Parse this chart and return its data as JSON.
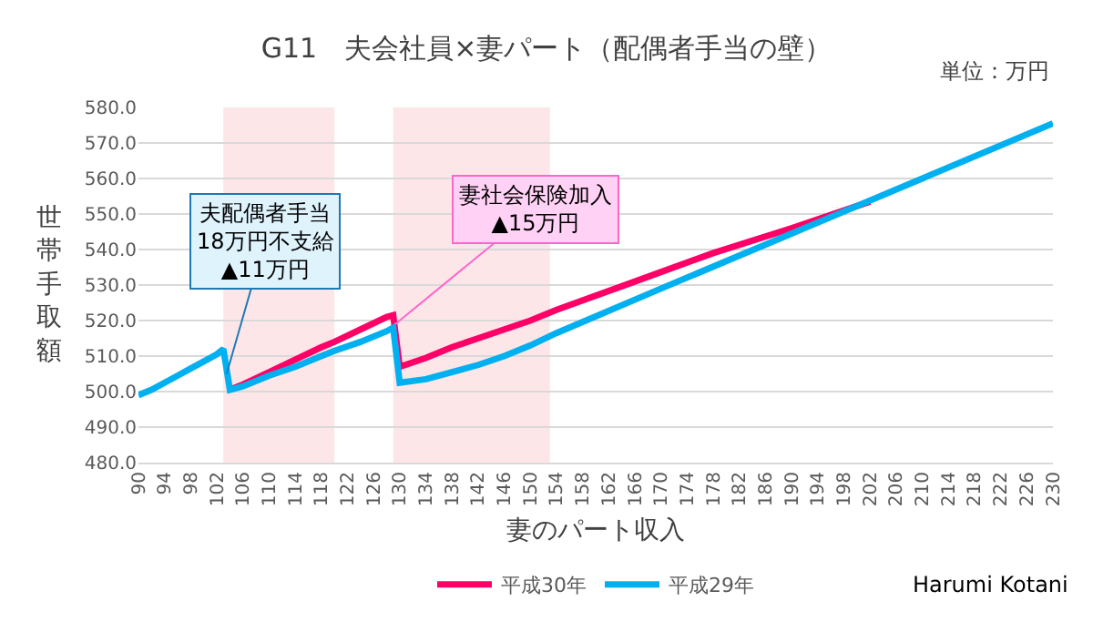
{
  "chart_data": {
    "type": "line",
    "title": "G11　夫会社員×妻パート（配偶者手当の壁）",
    "xlabel": "妻のパート収入",
    "ylabel": "世帯手取額",
    "xlim": [
      90,
      230
    ],
    "xticks": [
      90,
      94,
      98,
      102,
      106,
      110,
      114,
      118,
      122,
      126,
      130,
      134,
      138,
      142,
      146,
      150,
      154,
      158,
      162,
      166,
      170,
      174,
      178,
      182,
      186,
      190,
      194,
      198,
      202,
      206,
      210,
      214,
      218,
      222,
      226,
      230
    ],
    "ylim": [
      480,
      580
    ],
    "yticks": [
      {
        "value": 480,
        "label": "480.0"
      },
      {
        "value": 490,
        "label": "490.0"
      },
      {
        "value": 500,
        "label": "500.0"
      },
      {
        "value": 510,
        "label": "510.0"
      },
      {
        "value": 520,
        "label": "520.0"
      },
      {
        "value": 530,
        "label": "530.0"
      },
      {
        "value": 540,
        "label": "540.0"
      },
      {
        "value": 550,
        "label": "550.0"
      },
      {
        "value": 560,
        "label": "560.0"
      },
      {
        "value": 570,
        "label": "570.0"
      },
      {
        "value": 580,
        "label": "580.0"
      }
    ],
    "grid": "y",
    "legend": "bottom",
    "marker": "none",
    "line_style": "solid",
    "series": [
      {
        "name": "平成30年",
        "color": "#ff0066",
        "x": [
          104,
          106,
          110,
          114,
          118,
          120,
          124,
          128,
          129,
          130,
          134,
          138,
          142,
          146,
          150,
          154,
          166,
          178,
          190,
          202
        ],
        "values": [
          500.5,
          502,
          505.5,
          509,
          512.5,
          514,
          517.5,
          521,
          521.5,
          507,
          509.5,
          512.5,
          515,
          517.5,
          520,
          523,
          531,
          539,
          546,
          553.5
        ]
      },
      {
        "name": "平成29年",
        "color": "#00b0f0",
        "x": [
          90,
          92,
          94,
          96,
          98,
          100,
          102,
          103,
          104,
          106,
          110,
          114,
          118,
          120,
          124,
          128,
          129,
          130,
          134,
          138,
          142,
          146,
          150,
          154,
          170,
          190,
          210,
          230
        ],
        "values": [
          499,
          500.5,
          502.5,
          504.5,
          506.5,
          508.5,
          510.5,
          512,
          500.5,
          501.5,
          504.5,
          507,
          510,
          511.5,
          514,
          517,
          518,
          502.5,
          503.5,
          505.5,
          507.5,
          510,
          513,
          516.5,
          529,
          544.5,
          560,
          575.5
        ]
      }
    ],
    "bands": [
      {
        "axis": "x",
        "from": 103,
        "to": 120,
        "color": "#fde6e8"
      },
      {
        "axis": "x",
        "from": 129,
        "to": 153,
        "color": "#fde6e8"
      }
    ],
    "annotations": [
      {
        "text": "夫配偶者手当\n18万円不支給\n▲11万円",
        "x": 103.5,
        "y": 505
      },
      {
        "text": "妻社会保険加入\n▲15万円",
        "x": 129.3,
        "y": 519
      },
      "単位：万円",
      "Harumi Kotani"
    ]
  }
}
